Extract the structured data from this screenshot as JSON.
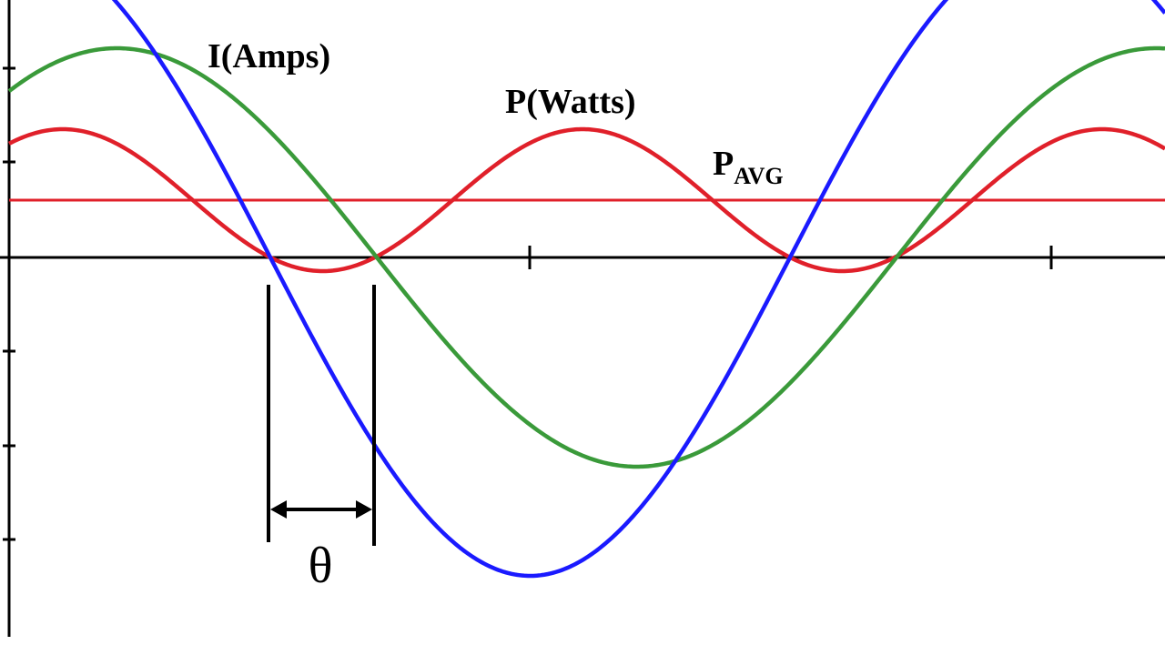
{
  "labels": {
    "current": "I(Amps)",
    "power": "P(Watts)",
    "pavg": "P",
    "pavg_sub": "AVG",
    "angle": "θ"
  }
}
